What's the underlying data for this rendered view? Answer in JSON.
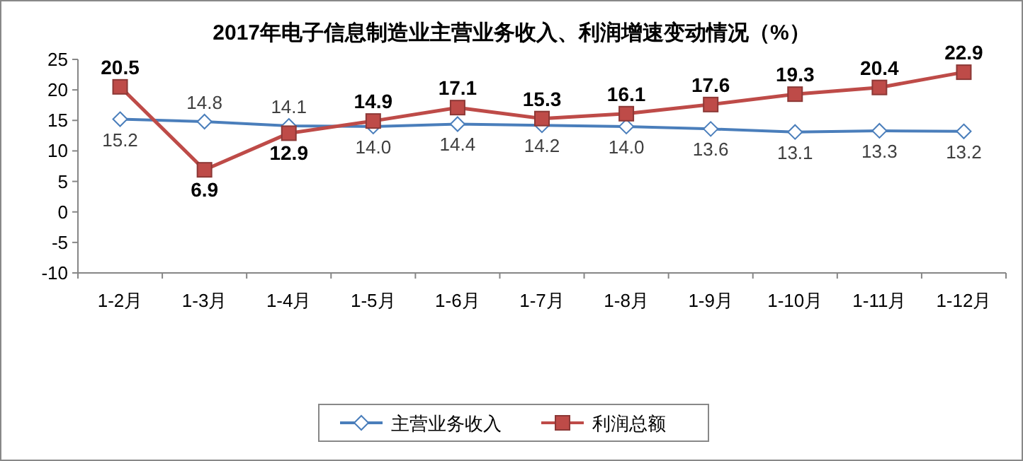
{
  "chart_data": {
    "type": "line",
    "title": "2017年电子信息制造业主营业务收入、利润增速变动情况（%）",
    "categories": [
      "1-2月",
      "1-3月",
      "1-4月",
      "1-5月",
      "1-6月",
      "1-7月",
      "1-8月",
      "1-9月",
      "1-10月",
      "1-11月",
      "1-12月"
    ],
    "series": [
      {
        "name": "主营业务收入",
        "color": "#4a7ebb",
        "marker": "diamond",
        "values": [
          15.2,
          14.8,
          14.1,
          14.0,
          14.4,
          14.2,
          14.0,
          13.6,
          13.1,
          13.3,
          13.2
        ],
        "value_labels": [
          "15.2",
          "14.8",
          "14.1",
          "14.0",
          "14.4",
          "14.2",
          "14.0",
          "13.6",
          "13.1",
          "13.3",
          "13.2"
        ]
      },
      {
        "name": "利润总额",
        "color": "#be4b48",
        "marker": "square",
        "values": [
          20.5,
          6.9,
          12.9,
          14.9,
          17.1,
          15.3,
          16.1,
          17.6,
          19.3,
          20.4,
          22.9
        ],
        "value_labels": [
          "20.5",
          "6.9",
          "12.9",
          "14.9",
          "17.1",
          "15.3",
          "16.1",
          "17.6",
          "19.3",
          "20.4",
          "22.9"
        ]
      }
    ],
    "ylim": [
      -10,
      25
    ],
    "yticks": [
      -10,
      -5,
      0,
      5,
      10,
      15,
      20,
      25
    ],
    "legend": "bottom",
    "grid": false
  }
}
